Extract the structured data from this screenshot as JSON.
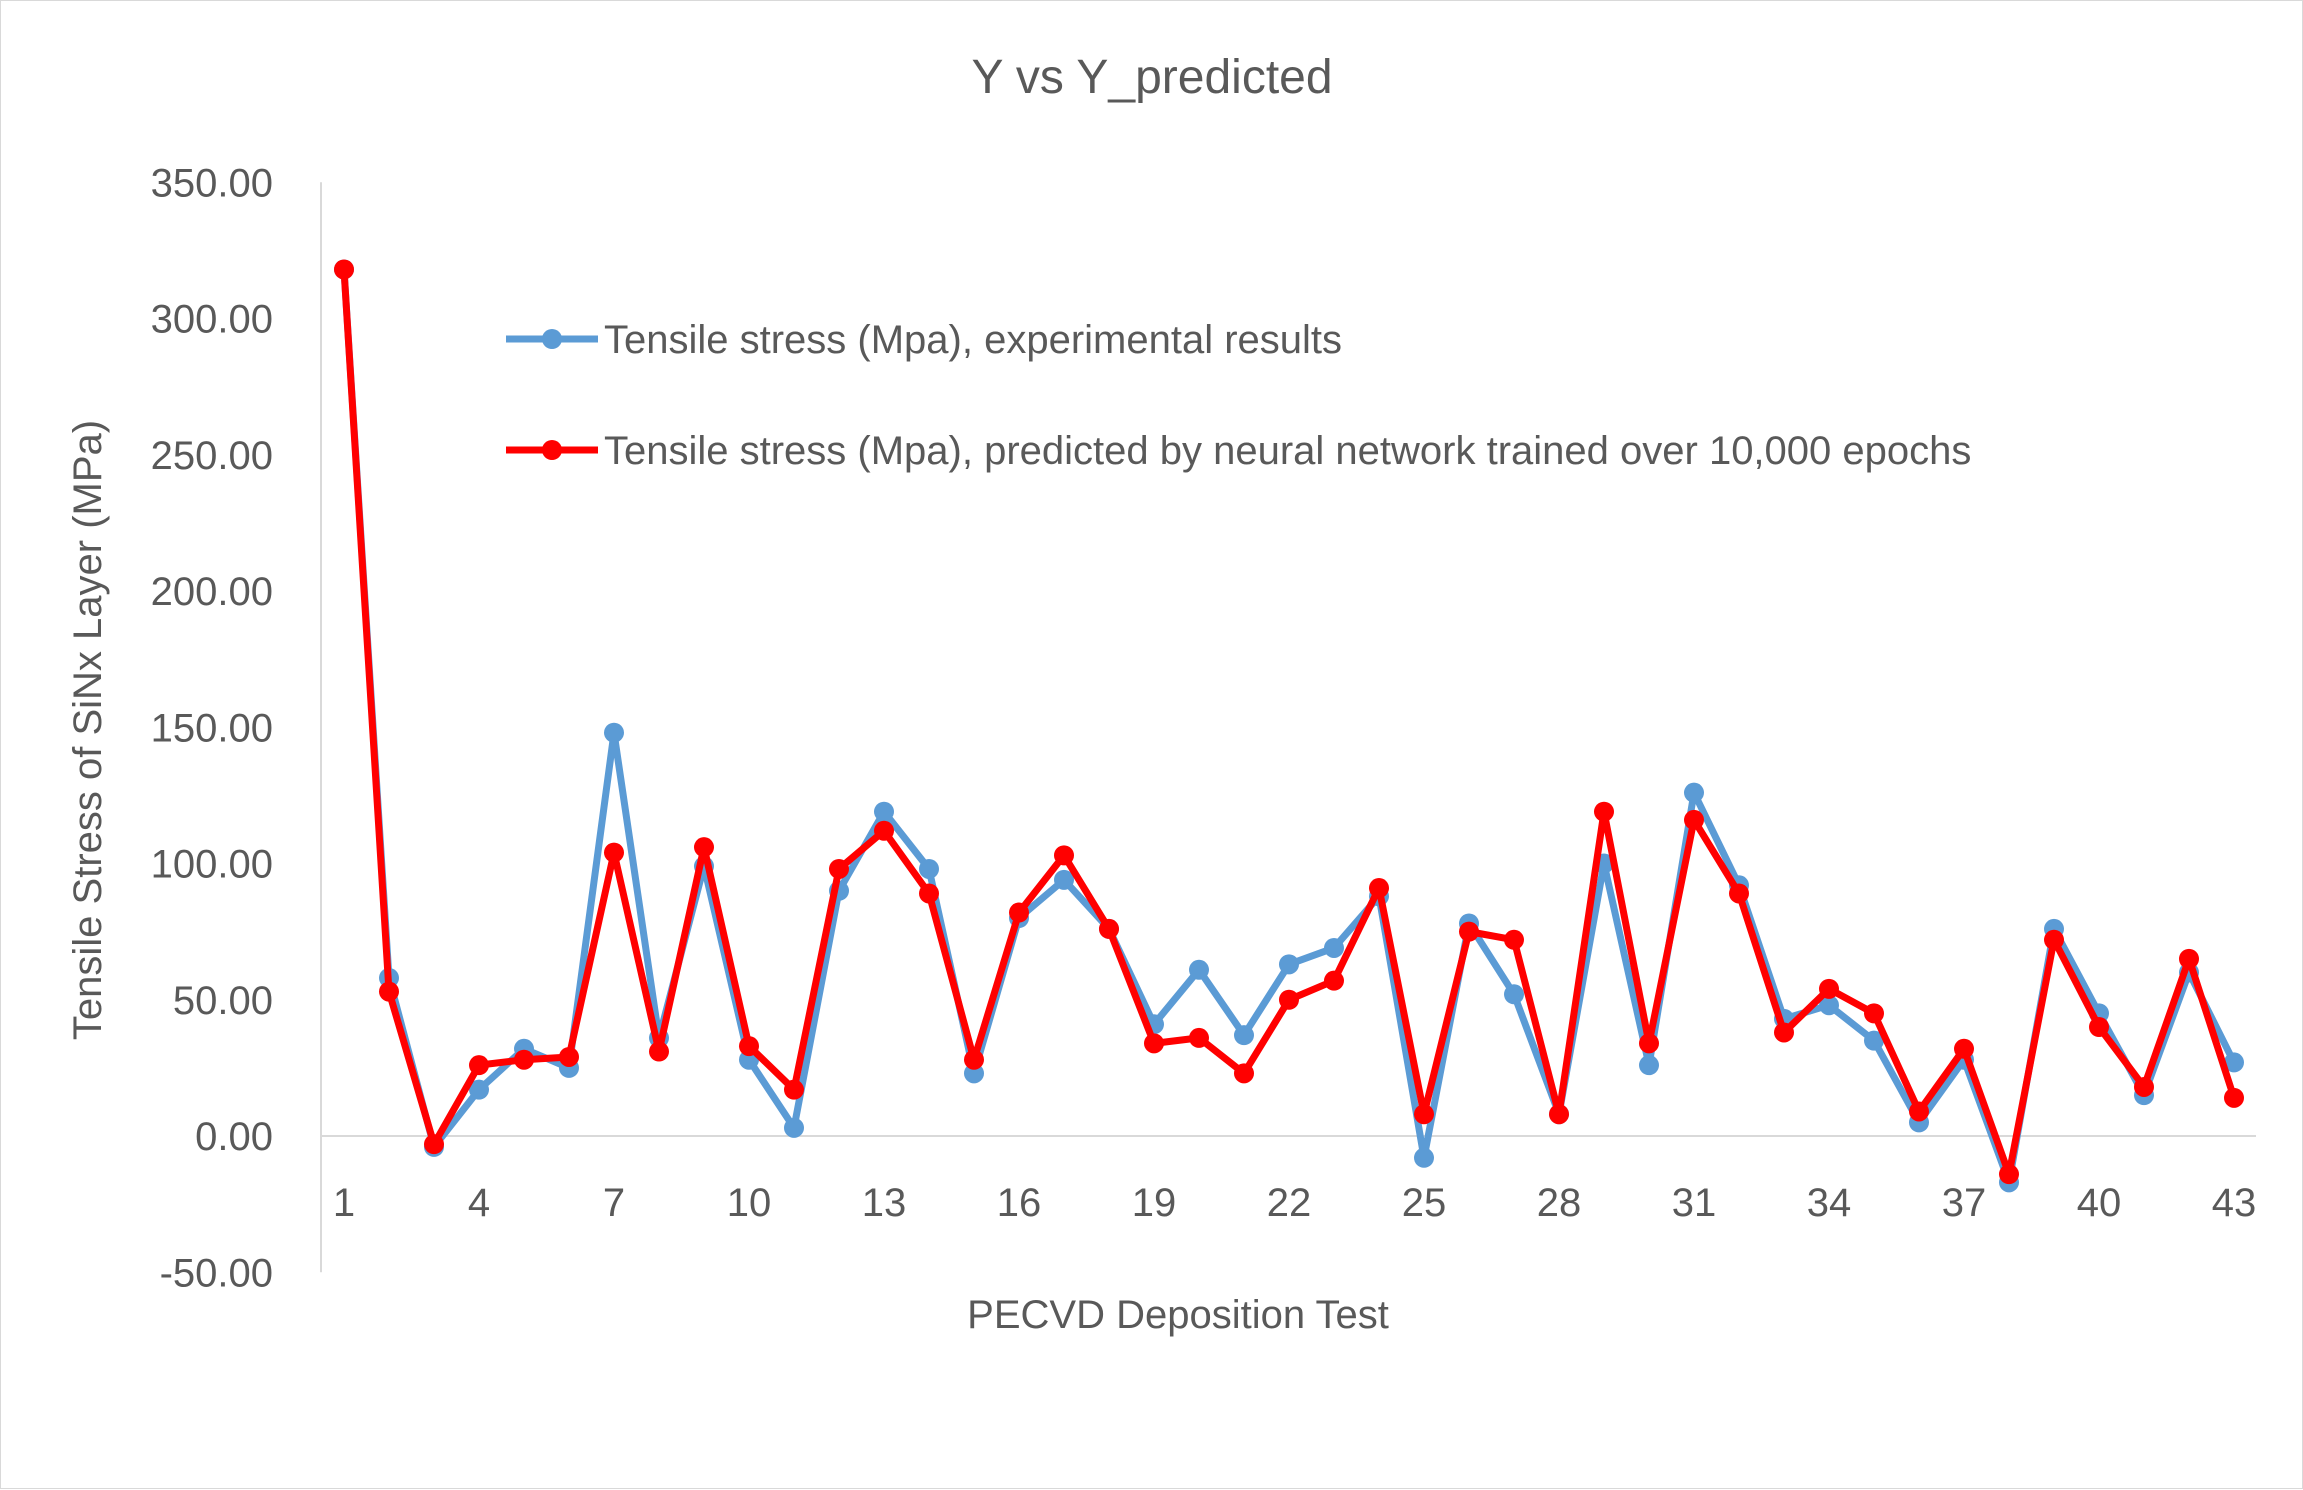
{
  "chart_data": {
    "type": "line",
    "title": "Y vs Y_predicted",
    "xlabel": "PECVD Deposition Test",
    "ylabel": "Tensile Stress of SiNx Layer (MPa)",
    "ylim": [
      -50,
      350
    ],
    "y_ticks": [
      "350.00",
      "300.00",
      "250.00",
      "200.00",
      "150.00",
      "100.00",
      "50.00",
      "0.00",
      "-50.00"
    ],
    "x": [
      1,
      2,
      3,
      4,
      5,
      6,
      7,
      8,
      9,
      10,
      11,
      12,
      13,
      14,
      15,
      16,
      17,
      18,
      19,
      20,
      21,
      22,
      23,
      24,
      25,
      26,
      27,
      28,
      29,
      30,
      31,
      32,
      33,
      34,
      35,
      36,
      37,
      38,
      39,
      40,
      41,
      42,
      43
    ],
    "x_tick_labels": [
      "1",
      "4",
      "7",
      "10",
      "13",
      "16",
      "19",
      "22",
      "25",
      "28",
      "31",
      "34",
      "37",
      "40",
      "43"
    ],
    "grid": false,
    "legend_position": "top-right",
    "series": [
      {
        "name": "Tensile stress (Mpa), experimental results",
        "color": "#5b9bd5",
        "values": [
          318,
          58,
          -4,
          17,
          32,
          25,
          148,
          36,
          99,
          28,
          3,
          90,
          119,
          98,
          23,
          80,
          94,
          76,
          41,
          61,
          37,
          63,
          69,
          88,
          -8,
          78,
          52,
          8,
          100,
          26,
          126,
          92,
          43,
          48,
          35,
          5,
          28,
          -17,
          76,
          45,
          15,
          60,
          27
        ]
      },
      {
        "name": "Tensile stress (Mpa), predicted by neural network trained over 10,000 epochs",
        "color": "#ff0000",
        "values": [
          318,
          53,
          -3,
          26,
          28,
          29,
          104,
          31,
          106,
          33,
          17,
          98,
          112,
          89,
          28,
          82,
          103,
          76,
          34,
          36,
          23,
          50,
          57,
          91,
          8,
          75,
          72,
          8,
          119,
          34,
          116,
          89,
          38,
          54,
          45,
          9,
          32,
          -14,
          72,
          40,
          18,
          65,
          14
        ]
      }
    ]
  }
}
